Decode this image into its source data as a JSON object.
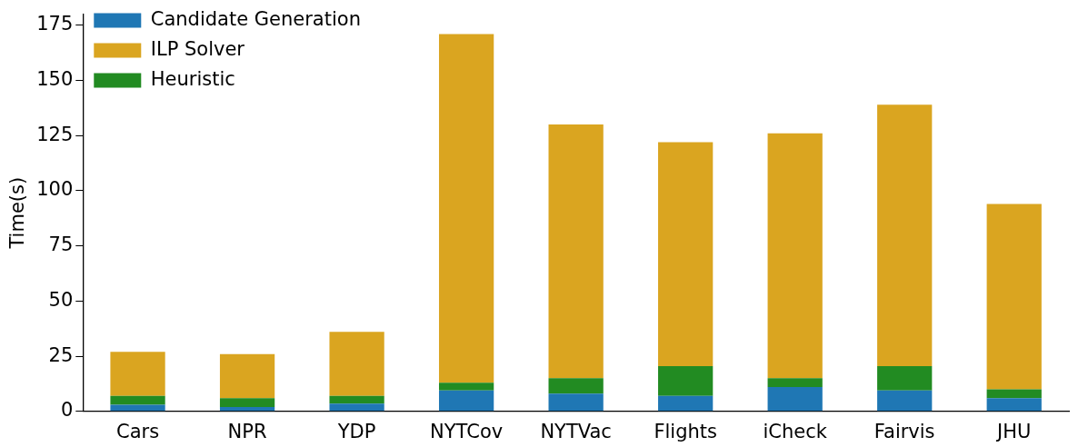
{
  "chart_data": {
    "type": "bar",
    "stacked": true,
    "ylabel": "Time(s)",
    "categories": [
      "Cars",
      "NPR",
      "YDP",
      "NYTCov",
      "NYTVac",
      "Flights",
      "iCheck",
      "Fairvis",
      "JHU"
    ],
    "series": [
      {
        "name": "Candidate Generation",
        "color": "#1f77b4",
        "values": [
          3,
          2,
          3.5,
          9.5,
          8,
          7,
          11,
          9.5,
          6
        ]
      },
      {
        "name": "Heuristic",
        "color": "#228b22",
        "values": [
          4,
          4,
          3.5,
          3.5,
          7,
          13.5,
          4,
          11,
          4
        ]
      },
      {
        "name": "ILP Solver",
        "color": "#daa520",
        "values": [
          20,
          20,
          29,
          158,
          115,
          101.5,
          111,
          118.5,
          84
        ]
      }
    ],
    "ylim": [
      0,
      180
    ],
    "yticks": [
      0,
      25,
      50,
      75,
      100,
      125,
      150,
      175
    ],
    "grid": false,
    "legend": "top left"
  }
}
